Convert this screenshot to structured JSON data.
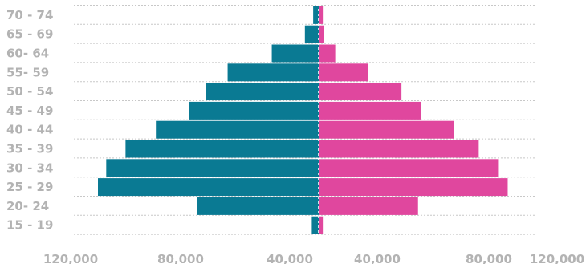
{
  "chart_data": {
    "type": "bar",
    "orientation": "horizontal-population-pyramid",
    "categories": [
      "70 - 74",
      "65 - 69",
      "60- 64",
      "55- 59",
      "50 - 54",
      "45 - 49",
      "40 - 44",
      "35 - 39",
      "30 - 34",
      "25 - 29",
      "20- 24",
      "15 - 19"
    ],
    "series": [
      {
        "side": "left",
        "color": "#0a7a93",
        "values": [
          2000,
          5000,
          17000,
          33000,
          41000,
          47000,
          59000,
          70000,
          77000,
          80000,
          44000,
          2500
        ]
      },
      {
        "side": "right",
        "color": "#e0479e",
        "values": [
          1500,
          2000,
          6000,
          18000,
          30000,
          37000,
          49000,
          58000,
          65000,
          68500,
          36000,
          1500
        ]
      }
    ],
    "x_ticks_left": [
      "120,000",
      "80,000",
      "40,000"
    ],
    "x_ticks_right": [
      "40,000",
      "80,000",
      "120,000"
    ],
    "xlim": [
      -80000,
      80000
    ],
    "grid": true,
    "divider_color": "#ffffff",
    "grid_color": "#c8c8c8",
    "label_color": "#b3b3b3"
  }
}
